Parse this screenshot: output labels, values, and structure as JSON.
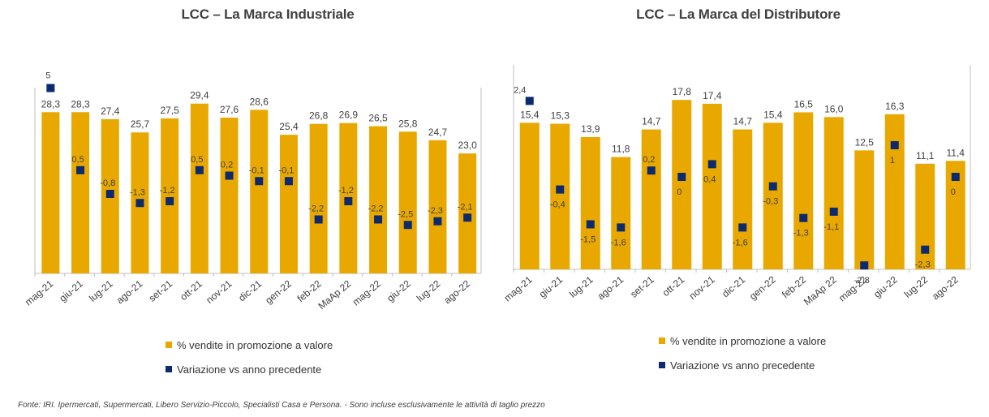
{
  "chart_data": [
    {
      "type": "bar",
      "title": "LCC – La Marca Industriale",
      "categories": [
        "mag-21",
        "giu-21",
        "lug-21",
        "ago-21",
        "set-21",
        "ott-21",
        "nov-21",
        "dic-21",
        "gen-22",
        "feb-22",
        "MaAp 22",
        "mag-22",
        "giu-22",
        "lug-22",
        "ago-22"
      ],
      "series": [
        {
          "name": "% vendite in promozione a valore",
          "type": "bar",
          "color": "#E8A800",
          "values": [
            28.3,
            28.3,
            27.4,
            25.7,
            27.5,
            29.4,
            27.6,
            28.6,
            25.4,
            26.8,
            26.9,
            26.5,
            25.8,
            24.7,
            23.0
          ],
          "labels": [
            "28,3",
            "28,3",
            "27,4",
            "25,7",
            "27,5",
            "29,4",
            "27,6",
            "28,6",
            "25,4",
            "26,8",
            "26,9",
            "26,5",
            "25,8",
            "24,7",
            "23,0"
          ]
        },
        {
          "name": "Variazione vs anno precedente",
          "type": "marker",
          "color": "#0D2A6E",
          "values": [
            5,
            0.5,
            -0.8,
            -1.3,
            -1.2,
            0.5,
            0.2,
            -0.1,
            -0.1,
            -2.2,
            -1.2,
            -2.2,
            -2.5,
            -2.3,
            -2.1
          ],
          "labels": [
            "5",
            "0,5",
            "-0,8",
            "-1,3",
            "-1,2",
            "0,5",
            "0,2",
            "-0,1",
            "-0,1",
            "-2,2",
            "-1,2",
            "-2,2",
            "-2,5",
            "-2,3",
            "-2,1"
          ]
        }
      ]
    },
    {
      "type": "bar",
      "title": "LCC – La Marca del Distributore",
      "categories": [
        "mag-21",
        "giu-21",
        "lug-21",
        "ago-21",
        "set-21",
        "ott-21",
        "nov-21",
        "dic-21",
        "gen-22",
        "feb-22",
        "MaAp 22",
        "mag-22",
        "giu-22",
        "lug-22",
        "ago-22"
      ],
      "series": [
        {
          "name": "% vendite in promozione a valore",
          "type": "bar",
          "color": "#E8A800",
          "values": [
            15.4,
            15.3,
            13.9,
            11.8,
            14.7,
            17.8,
            17.4,
            14.7,
            15.4,
            16.5,
            16.0,
            12.5,
            16.3,
            11.1,
            11.4
          ],
          "labels": [
            "15,4",
            "15,3",
            "13,9",
            "11,8",
            "14,7",
            "17,8",
            "17,4",
            "14,7",
            "15,4",
            "16,5",
            "16,0",
            "12,5",
            "16,3",
            "11,1",
            "11,4"
          ]
        },
        {
          "name": "Variazione vs anno precedente",
          "type": "marker",
          "color": "#0D2A6E",
          "values": [
            2.4,
            -0.4,
            -1.5,
            -1.6,
            0.2,
            0,
            0.4,
            -1.6,
            -0.3,
            -1.3,
            -1.1,
            -2.8,
            1,
            -2.3,
            0
          ],
          "labels": [
            "2,4",
            "-0,4",
            "-1,5",
            "-1,6",
            "0,2",
            "0",
            "0,4",
            "-1,6",
            "-0,3",
            "-1,3",
            "-1,1",
            "-2,8",
            "1",
            "-2,3",
            "0"
          ]
        }
      ]
    }
  ],
  "legend": {
    "left": {
      "bar": "% vendite in promozione a valore",
      "marker": "Variazione vs anno precedente"
    },
    "right": {
      "bar": "% vendite in promozione a valore",
      "marker": "Variazione vs anno precedente"
    }
  },
  "colors": {
    "bar": "#E8A800",
    "marker": "#0D2A6E",
    "text": "#404040"
  },
  "footnote": "Fonte: IRI. Ipermercati, Supermercati, Libero Servizio-Piccolo, Specialisti Casa e Persona. - Sono incluse esclusivamente le attività di taglio prezzo"
}
